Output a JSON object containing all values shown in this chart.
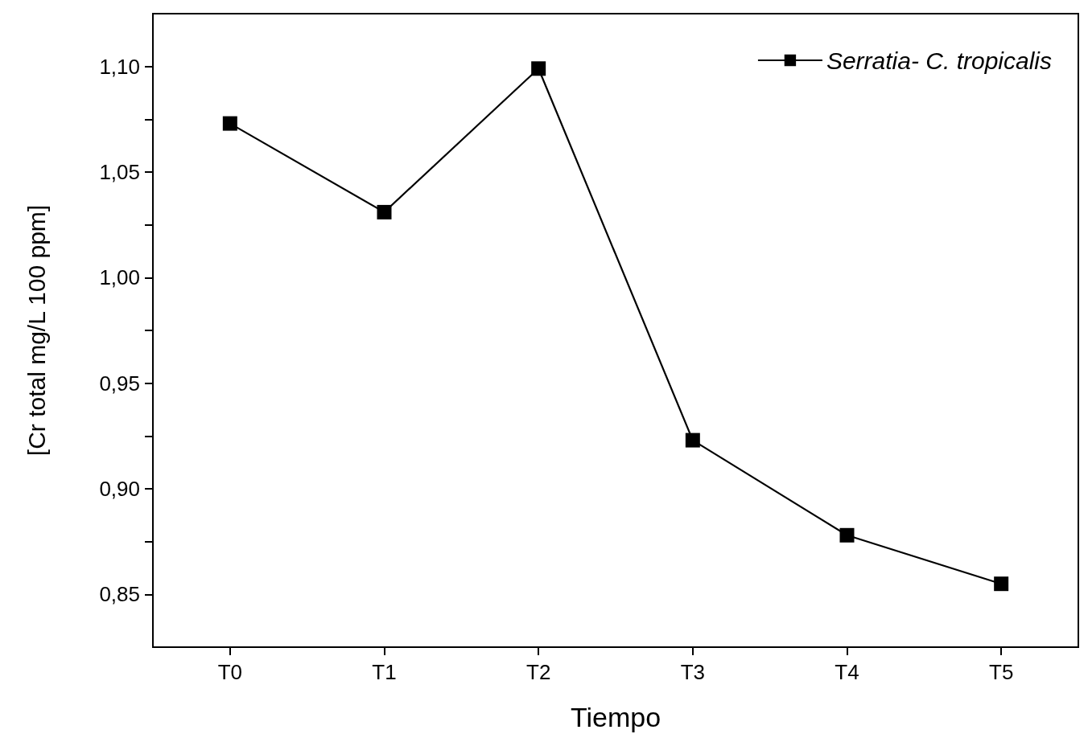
{
  "chart_data": {
    "type": "line",
    "xlabel": "Tiempo",
    "ylabel": "[Cr total mg/L 100 ppm]",
    "categories": [
      "T0",
      "T1",
      "T2",
      "T3",
      "T4",
      "T5"
    ],
    "series": [
      {
        "name": "Serratia- C. tropicalis",
        "color": "#000000",
        "values": [
          1.073,
          1.031,
          1.099,
          0.923,
          0.878,
          0.855
        ]
      }
    ],
    "ylim": [
      0.825,
      1.125
    ],
    "yticks": [
      {
        "value": 0.85,
        "label": "0,85"
      },
      {
        "value": 0.875,
        "label": null
      },
      {
        "value": 0.9,
        "label": "0,90"
      },
      {
        "value": 0.925,
        "label": null
      },
      {
        "value": 0.95,
        "label": "0,95"
      },
      {
        "value": 0.975,
        "label": null
      },
      {
        "value": 1.0,
        "label": "1,00"
      },
      {
        "value": 1.025,
        "label": null
      },
      {
        "value": 1.05,
        "label": "1,05"
      },
      {
        "value": 1.075,
        "label": null
      },
      {
        "value": 1.1,
        "label": "1,10"
      }
    ],
    "grid": false,
    "legend": "top right",
    "marker": "square",
    "line_style": "solid"
  }
}
